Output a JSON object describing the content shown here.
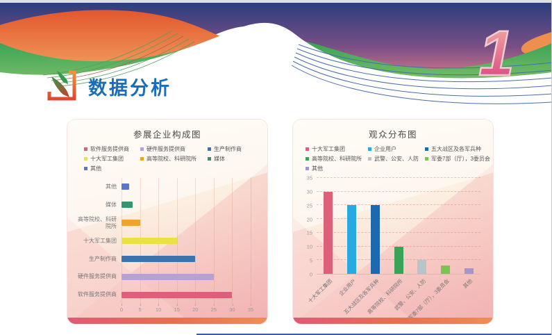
{
  "banner": {
    "section_number": "1",
    "colors": {
      "sky_top": "#2b3e7d",
      "sky_bottom": "#e8808a",
      "wave_orange": "#e8632f",
      "wave_green": "#3f9e52",
      "curve_line_blue": "#4a6cad",
      "curve_line_green": "#55a05a",
      "number_pink_top": "#f5b2a5",
      "number_pink_bottom": "#d63d7e"
    }
  },
  "header": {
    "title": "数据分析",
    "title_color": "#1a6db6",
    "icon": "data-analysis-arrows-icon"
  },
  "chart_data": [
    {
      "type": "bar",
      "orientation": "horizontal",
      "title": "参展企业构成图",
      "categories": [
        "软件服务提供商",
        "硬件服务提供商",
        "生产制作商",
        "十大军工集团",
        "高等院校、科研院所",
        "媒体",
        "其他"
      ],
      "values": [
        30,
        25,
        20,
        15,
        5,
        3,
        2
      ],
      "colors": [
        "#dd607b",
        "#b5a1d6",
        "#3b73ae",
        "#e9e23f",
        "#f0a22b",
        "#3a9370",
        "#5b76c8"
      ],
      "xlabel": "",
      "ylabel": "",
      "xlim": [
        0,
        35
      ],
      "xticks": [
        0,
        5,
        10,
        15,
        20,
        25,
        30,
        35
      ],
      "legend_position": "top",
      "grid": "vertical-solid"
    },
    {
      "type": "bar",
      "orientation": "vertical",
      "title": "观众分布图",
      "categories": [
        "十大军工集团",
        "企业用户",
        "五大战区及各军兵种",
        "高等院校、科研院所",
        "武警、公安、人防",
        "军委7部（厅），3委员会",
        "其他"
      ],
      "values": [
        30,
        25,
        25,
        10,
        5,
        3,
        2
      ],
      "colors": [
        "#dd607b",
        "#29a9e1",
        "#1d69b0",
        "#3aa356",
        "#b9c3ca",
        "#7cc353",
        "#a495cf"
      ],
      "xlabel": "",
      "ylabel": "",
      "ylim": [
        0,
        35
      ],
      "yticks": [
        0,
        5,
        10,
        15,
        20,
        25,
        30,
        35
      ],
      "legend_position": "top",
      "grid": "horizontal-dashed"
    }
  ]
}
